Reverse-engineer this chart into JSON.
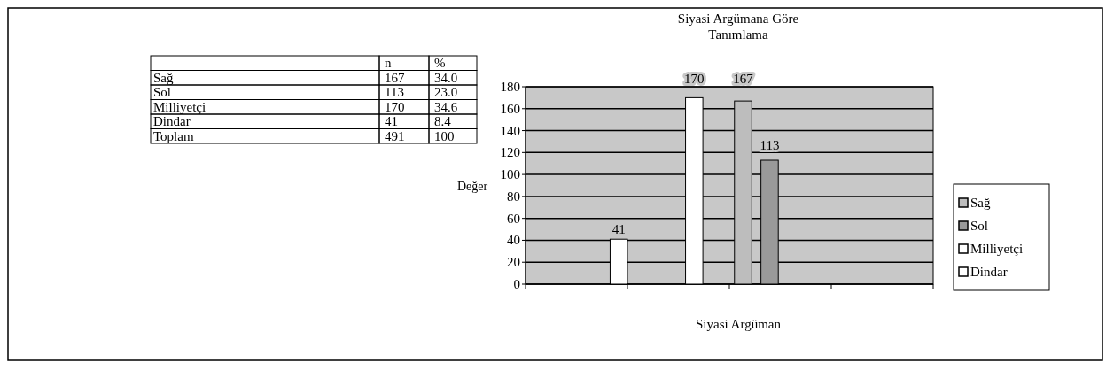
{
  "chart_data": [
    {
      "type": "other",
      "categories": [
        "Sağ",
        "Sol",
        "Milliyetçi",
        "Dindar",
        "Toplam"
      ],
      "data_labels": true,
      "series": [
        {
          "name": "n",
          "values": [
            167,
            113,
            170,
            41,
            491
          ]
        },
        {
          "name": "%",
          "values": [
            34.0,
            23.0,
            34.6,
            8.4,
            100
          ],
          "value_labels": [
            "34.0",
            "23.0",
            "34.6",
            "8.4",
            "100"
          ]
        }
      ]
    },
    {
      "type": "bar",
      "title": "Siyasi Argümana Göre Tanımlama",
      "xlabel": "Siyasi Argüman",
      "ylabel": "Değer",
      "categories": [
        null,
        null,
        null,
        null
      ],
      "series": [
        {
          "name": "Sağ",
          "color": "#bdbdbd",
          "values": [
            null,
            null,
            167,
            null
          ]
        },
        {
          "name": "Sol",
          "color": "#9a9a9a",
          "values": [
            null,
            null,
            113,
            null
          ]
        },
        {
          "name": "Milliyetçi",
          "color": "#ffffff",
          "values": [
            null,
            170,
            null,
            null
          ]
        },
        {
          "name": "Dindar",
          "color": "#ffffff",
          "values": [
            41,
            null,
            null,
            null
          ]
        }
      ],
      "ylim": [
        0,
        180
      ],
      "yticks": [
        0,
        20,
        40,
        60,
        80,
        100,
        120,
        140,
        160,
        180
      ],
      "grid": "y",
      "legend": "right",
      "data_labels": true
    }
  ]
}
